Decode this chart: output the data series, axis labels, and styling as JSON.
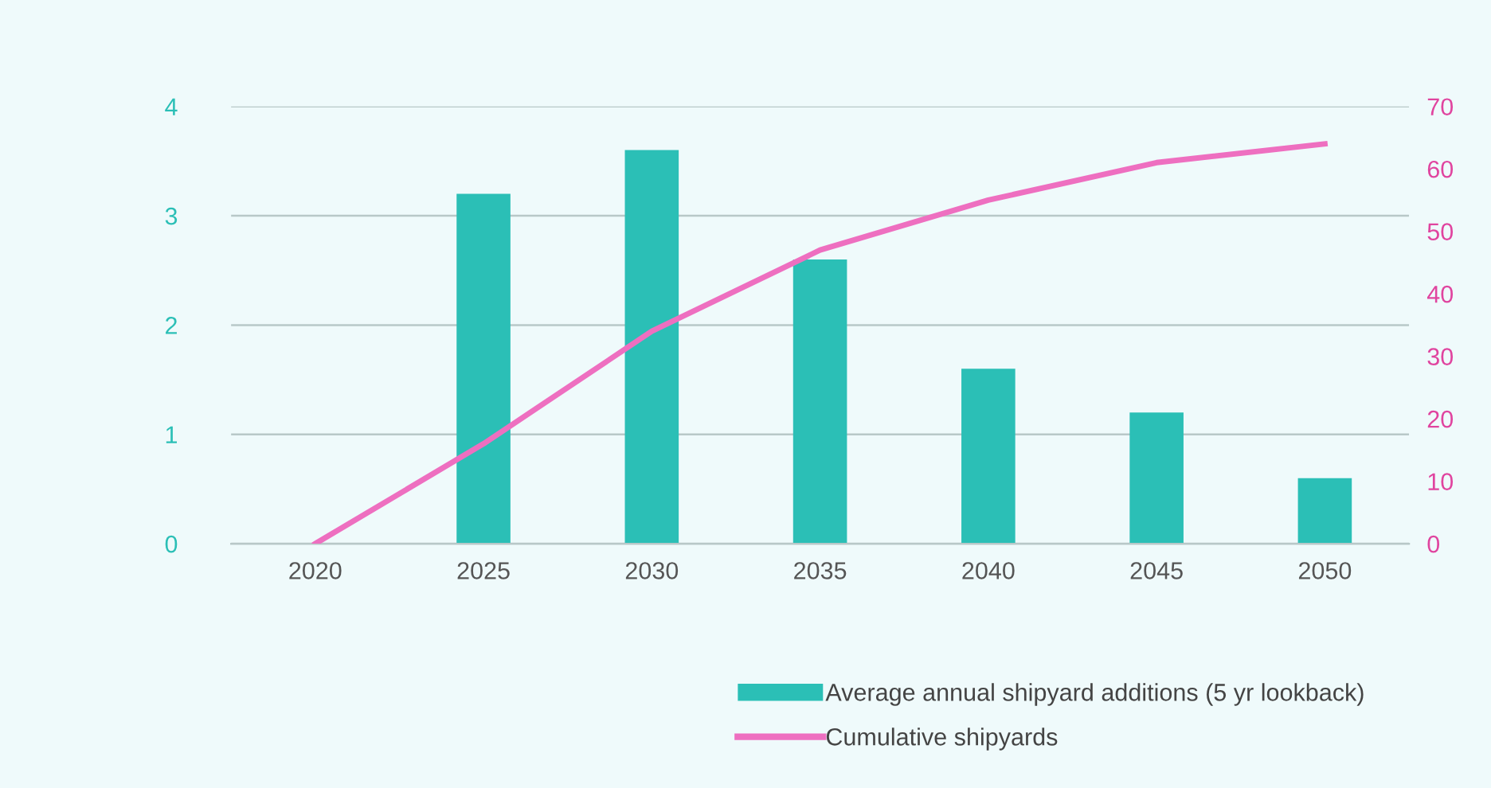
{
  "chart_data": {
    "type": "bar",
    "categories": [
      "2020",
      "2025",
      "2030",
      "2035",
      "2040",
      "2045",
      "2050"
    ],
    "series": [
      {
        "name": "Average annual shipyard additions (5 yr lookback)",
        "color": "#2bbfb6",
        "values": [
          0,
          3.2,
          3.6,
          2.6,
          1.6,
          1.2,
          0.6
        ]
      },
      {
        "name": "Cumulative shipyards",
        "type": "line",
        "axis": "y2",
        "color": "#ee6fc0",
        "values": [
          0,
          16,
          34,
          47,
          55,
          61,
          64
        ]
      }
    ],
    "ylim": [
      0,
      4
    ],
    "yticks": [
      0,
      1,
      2,
      3,
      4
    ],
    "y2lim": [
      0,
      70
    ],
    "y2ticks": [
      0,
      10,
      20,
      30,
      40,
      50,
      60,
      70
    ],
    "grid": "y",
    "legend": "bottom right"
  }
}
